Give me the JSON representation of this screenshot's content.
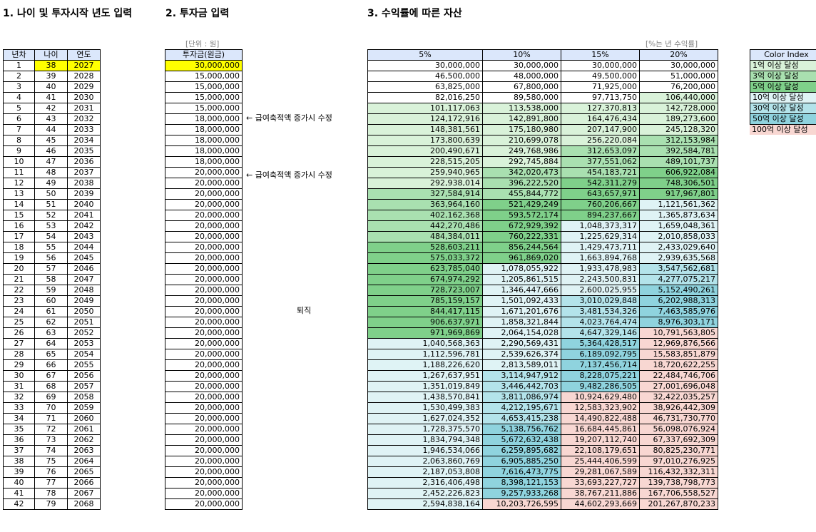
{
  "titles": {
    "section1": "1. 나이 및 투자시작 년도 입력",
    "section2": "2. 투자금 입력",
    "section3": "3. 수익률에 따른 자산",
    "unit_note": "[단위 : 원]",
    "rate_note": "[%는 년 수익률]"
  },
  "left_table": {
    "headers": [
      "년차",
      "나이",
      "연도"
    ],
    "rows": [
      [
        "1",
        "38",
        "2027"
      ],
      [
        "2",
        "39",
        "2028"
      ],
      [
        "3",
        "40",
        "2029"
      ],
      [
        "4",
        "41",
        "2030"
      ],
      [
        "5",
        "42",
        "2031"
      ],
      [
        "6",
        "43",
        "2032"
      ],
      [
        "7",
        "44",
        "2033"
      ],
      [
        "8",
        "45",
        "2034"
      ],
      [
        "9",
        "46",
        "2035"
      ],
      [
        "10",
        "47",
        "2036"
      ],
      [
        "11",
        "48",
        "2037"
      ],
      [
        "12",
        "49",
        "2038"
      ],
      [
        "13",
        "50",
        "2039"
      ],
      [
        "14",
        "51",
        "2040"
      ],
      [
        "15",
        "52",
        "2041"
      ],
      [
        "16",
        "53",
        "2042"
      ],
      [
        "17",
        "54",
        "2043"
      ],
      [
        "18",
        "55",
        "2044"
      ],
      [
        "19",
        "56",
        "2045"
      ],
      [
        "20",
        "57",
        "2046"
      ],
      [
        "21",
        "58",
        "2047"
      ],
      [
        "22",
        "59",
        "2048"
      ],
      [
        "23",
        "60",
        "2049"
      ],
      [
        "24",
        "61",
        "2050"
      ],
      [
        "25",
        "62",
        "2051"
      ],
      [
        "26",
        "63",
        "2052"
      ],
      [
        "27",
        "64",
        "2053"
      ],
      [
        "28",
        "65",
        "2054"
      ],
      [
        "29",
        "66",
        "2055"
      ],
      [
        "30",
        "67",
        "2056"
      ],
      [
        "31",
        "68",
        "2057"
      ],
      [
        "32",
        "69",
        "2058"
      ],
      [
        "33",
        "70",
        "2059"
      ],
      [
        "34",
        "71",
        "2060"
      ],
      [
        "35",
        "72",
        "2061"
      ],
      [
        "36",
        "73",
        "2062"
      ],
      [
        "37",
        "74",
        "2063"
      ],
      [
        "38",
        "75",
        "2064"
      ],
      [
        "39",
        "76",
        "2065"
      ],
      [
        "40",
        "77",
        "2066"
      ],
      [
        "41",
        "78",
        "2067"
      ],
      [
        "42",
        "79",
        "2068"
      ]
    ]
  },
  "invest_table": {
    "header": "투자금(원금)",
    "values": [
      "30,000,000",
      "15,000,000",
      "15,000,000",
      "15,000,000",
      "15,000,000",
      "18,000,000",
      "18,000,000",
      "18,000,000",
      "18,000,000",
      "18,000,000",
      "20,000,000",
      "20,000,000",
      "20,000,000",
      "20,000,000",
      "20,000,000",
      "20,000,000",
      "20,000,000",
      "20,000,000",
      "20,000,000",
      "20,000,000",
      "20,000,000",
      "20,000,000",
      "20,000,000",
      "20,000,000",
      "20,000,000",
      "20,000,000",
      "20,000,000",
      "20,000,000",
      "20,000,000",
      "20,000,000",
      "20,000,000",
      "20,000,000",
      "20,000,000",
      "20,000,000",
      "20,000,000",
      "20,000,000",
      "20,000,000",
      "20,000,000",
      "20,000,000",
      "20,000,000",
      "20,000,000",
      "20,000,000"
    ]
  },
  "notes": {
    "row6": "← 급여축적액 증가시 수정",
    "row11": "← 급여축적액 증가시 수정",
    "retire": "퇴직"
  },
  "asset_table": {
    "headers": [
      "5%",
      "10%",
      "15%",
      "20%"
    ],
    "rows": [
      [
        "30,000,000",
        "30,000,000",
        "30,000,000",
        "30,000,000"
      ],
      [
        "46,500,000",
        "48,000,000",
        "49,500,000",
        "51,000,000"
      ],
      [
        "63,825,000",
        "67,800,000",
        "71,925,000",
        "76,200,000"
      ],
      [
        "82,016,250",
        "89,580,000",
        "97,713,750",
        "106,440,000"
      ],
      [
        "101,117,063",
        "113,538,000",
        "127,370,813",
        "142,728,000"
      ],
      [
        "124,172,916",
        "142,891,800",
        "164,476,434",
        "189,273,600"
      ],
      [
        "148,381,561",
        "175,180,980",
        "207,147,900",
        "245,128,320"
      ],
      [
        "173,800,639",
        "210,699,078",
        "256,220,084",
        "312,153,984"
      ],
      [
        "200,490,671",
        "249,768,986",
        "312,653,097",
        "392,584,781"
      ],
      [
        "228,515,205",
        "292,745,884",
        "377,551,062",
        "489,101,737"
      ],
      [
        "259,940,965",
        "342,020,473",
        "454,183,721",
        "606,922,084"
      ],
      [
        "292,938,014",
        "396,222,520",
        "542,311,279",
        "748,306,501"
      ],
      [
        "327,584,914",
        "455,844,772",
        "643,657,971",
        "917,967,801"
      ],
      [
        "363,964,160",
        "521,429,249",
        "760,206,667",
        "1,121,561,362"
      ],
      [
        "402,162,368",
        "593,572,174",
        "894,237,667",
        "1,365,873,634"
      ],
      [
        "442,270,486",
        "672,929,392",
        "1,048,373,317",
        "1,659,048,361"
      ],
      [
        "484,384,011",
        "760,222,331",
        "1,225,629,314",
        "2,010,858,033"
      ],
      [
        "528,603,211",
        "856,244,564",
        "1,429,473,711",
        "2,433,029,640"
      ],
      [
        "575,033,372",
        "961,869,020",
        "1,663,894,768",
        "2,939,635,568"
      ],
      [
        "623,785,040",
        "1,078,055,922",
        "1,933,478,983",
        "3,547,562,681"
      ],
      [
        "674,974,292",
        "1,205,861,515",
        "2,243,500,831",
        "4,277,075,217"
      ],
      [
        "728,723,007",
        "1,346,447,666",
        "2,600,025,955",
        "5,152,490,261"
      ],
      [
        "785,159,157",
        "1,501,092,433",
        "3,010,029,848",
        "6,202,988,313"
      ],
      [
        "844,417,115",
        "1,671,201,676",
        "3,481,534,326",
        "7,463,585,976"
      ],
      [
        "906,637,971",
        "1,858,321,844",
        "4,023,764,474",
        "8,976,303,171"
      ],
      [
        "971,969,869",
        "2,064,154,028",
        "4,647,329,146",
        "10,791,563,805"
      ],
      [
        "1,040,568,363",
        "2,290,569,431",
        "5,364,428,517",
        "12,969,876,566"
      ],
      [
        "1,112,596,781",
        "2,539,626,374",
        "6,189,092,795",
        "15,583,851,879"
      ],
      [
        "1,188,226,620",
        "2,813,589,011",
        "7,137,456,714",
        "18,720,622,255"
      ],
      [
        "1,267,637,951",
        "3,114,947,912",
        "8,228,075,221",
        "22,484,746,706"
      ],
      [
        "1,351,019,849",
        "3,446,442,703",
        "9,482,286,505",
        "27,001,696,048"
      ],
      [
        "1,438,570,841",
        "3,811,086,974",
        "10,924,629,480",
        "32,422,035,257"
      ],
      [
        "1,530,499,383",
        "4,212,195,671",
        "12,583,323,902",
        "38,926,442,309"
      ],
      [
        "1,627,024,352",
        "4,653,415,238",
        "14,490,822,488",
        "46,731,730,770"
      ],
      [
        "1,728,375,570",
        "5,138,756,762",
        "16,684,445,861",
        "56,098,076,924"
      ],
      [
        "1,834,794,348",
        "5,672,632,438",
        "19,207,112,740",
        "67,337,692,309"
      ],
      [
        "1,946,534,066",
        "6,259,895,682",
        "22,108,179,651",
        "80,825,230,771"
      ],
      [
        "2,063,860,769",
        "6,905,885,250",
        "25,444,406,599",
        "97,010,276,925"
      ],
      [
        "2,187,053,808",
        "7,616,473,775",
        "29,281,067,589",
        "116,432,332,311"
      ],
      [
        "2,316,406,498",
        "8,398,121,153",
        "33,693,227,727",
        "139,738,798,773"
      ],
      [
        "2,452,226,823",
        "9,257,933,268",
        "38,767,211,886",
        "167,706,558,527"
      ],
      [
        "2,594,838,164",
        "10,203,726,595",
        "44,602,293,669",
        "201,267,870,233"
      ]
    ]
  },
  "color_index": {
    "header": "Color Index",
    "items": [
      {
        "label": "1억 이상 달성",
        "color": "#d9f2d9"
      },
      {
        "label": "3억 이상 달성",
        "color": "#a9e0b0"
      },
      {
        "label": "5억 이상 달성",
        "color": "#7fd08a"
      },
      {
        "label": "10억 이상 달성",
        "color": "#dff3f5"
      },
      {
        "label": "30억 이상 달성",
        "color": "#b3e3ea"
      },
      {
        "label": "50억 이상 달성",
        "color": "#8fd3de"
      },
      {
        "label": "100억 이상 달성",
        "color": "#f8d7d2"
      }
    ]
  }
}
